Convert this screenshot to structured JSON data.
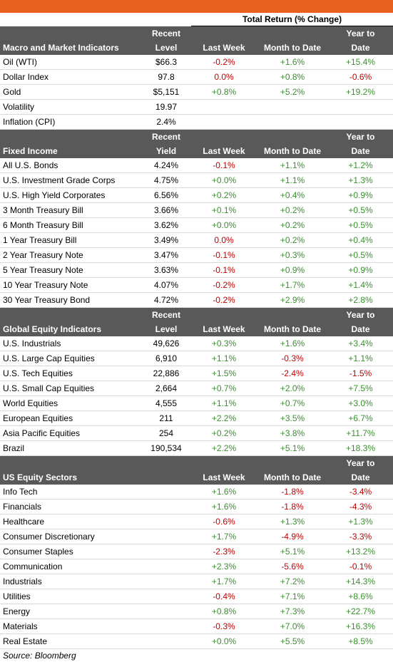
{
  "header": {
    "total_return_title": "Total Return (% Change)"
  },
  "sections": [
    {
      "title": "Macro and Market Indicators",
      "level_header": [
        "Recent",
        "Level"
      ],
      "cols": [
        "Last Week",
        "Month to Date",
        "Year to",
        "Date"
      ],
      "rows": [
        {
          "name": "Oil (WTI)",
          "level": "$66.3",
          "lw": "-0.2%",
          "mtd": "+1.6%",
          "ytd": "+15.4%"
        },
        {
          "name": "Dollar Index",
          "level": "97.8",
          "lw": "0.0%",
          "mtd": "+0.8%",
          "ytd": "-0.6%"
        },
        {
          "name": "Gold",
          "level": "$5,151",
          "lw": "+0.8%",
          "mtd": "+5.2%",
          "ytd": "+19.2%"
        },
        {
          "name": "Volatility",
          "level": "19.97",
          "lw": "",
          "mtd": "",
          "ytd": ""
        },
        {
          "name": "Inflation (CPI)",
          "level": "2.4%",
          "lw": "",
          "mtd": "",
          "ytd": ""
        }
      ]
    },
    {
      "title": "Fixed Income",
      "level_header": [
        "Recent",
        "Yield"
      ],
      "cols": [
        "Last Week",
        "Month to Date",
        "Year to",
        "Date"
      ],
      "rows": [
        {
          "name": "All U.S. Bonds",
          "level": "4.24%",
          "lw": "-0.1%",
          "mtd": "+1.1%",
          "ytd": "+1.2%"
        },
        {
          "name": "U.S. Investment Grade Corps",
          "level": "4.75%",
          "lw": "+0.0%",
          "mtd": "+1.1%",
          "ytd": "+1.3%"
        },
        {
          "name": "U.S. High Yield Corporates",
          "level": "6.56%",
          "lw": "+0.2%",
          "mtd": "+0.4%",
          "ytd": "+0.9%"
        },
        {
          "name": "3 Month Treasury Bill",
          "level": "3.66%",
          "lw": "+0.1%",
          "mtd": "+0.2%",
          "ytd": "+0.5%"
        },
        {
          "name": "6 Month Treasury Bill",
          "level": "3.62%",
          "lw": "+0.0%",
          "mtd": "+0.2%",
          "ytd": "+0.5%"
        },
        {
          "name": "1 Year Treasury Bill",
          "level": "3.49%",
          "lw": "0.0%",
          "mtd": "+0.2%",
          "ytd": "+0.4%"
        },
        {
          "name": "2 Year Treasury Note",
          "level": "3.47%",
          "lw": "-0.1%",
          "mtd": "+0.3%",
          "ytd": "+0.5%"
        },
        {
          "name": "5 Year Treasury Note",
          "level": "3.63%",
          "lw": "-0.1%",
          "mtd": "+0.9%",
          "ytd": "+0.9%"
        },
        {
          "name": "10 Year Treasury Note",
          "level": "4.07%",
          "lw": "-0.2%",
          "mtd": "+1.7%",
          "ytd": "+1.4%"
        },
        {
          "name": "30 Year Treasury Bond",
          "level": "4.72%",
          "lw": "-0.2%",
          "mtd": "+2.9%",
          "ytd": "+2.8%"
        }
      ]
    },
    {
      "title": "Global Equity Indicators",
      "level_header": [
        "Recent",
        "Level"
      ],
      "cols": [
        "Last Week",
        "Month to Date",
        "Year to",
        "Date"
      ],
      "rows": [
        {
          "name": "U.S. Industrials",
          "level": "49,626",
          "lw": "+0.3%",
          "mtd": "+1.6%",
          "ytd": "+3.4%"
        },
        {
          "name": "U.S. Large Cap Equities",
          "level": "6,910",
          "lw": "+1.1%",
          "mtd": "-0.3%",
          "ytd": "+1.1%"
        },
        {
          "name": "U.S. Tech Equities",
          "level": "22,886",
          "lw": "+1.5%",
          "mtd": "-2.4%",
          "ytd": "-1.5%"
        },
        {
          "name": "U.S. Small Cap Equities",
          "level": "2,664",
          "lw": "+0.7%",
          "mtd": "+2.0%",
          "ytd": "+7.5%"
        },
        {
          "name": "World Equities",
          "level": "4,555",
          "lw": "+1.1%",
          "mtd": "+0.7%",
          "ytd": "+3.0%"
        },
        {
          "name": "European Equities",
          "level": "211",
          "lw": "+2.2%",
          "mtd": "+3.5%",
          "ytd": "+6.7%"
        },
        {
          "name": "Asia Pacific Equities",
          "level": "254",
          "lw": "+0.2%",
          "mtd": "+3.8%",
          "ytd": "+11.7%"
        },
        {
          "name": "Brazil",
          "level": "190,534",
          "lw": "+2.2%",
          "mtd": "+5.1%",
          "ytd": "+18.3%"
        }
      ]
    },
    {
      "title": "US Equity Sectors",
      "level_header": [
        "",
        ""
      ],
      "cols": [
        "Last Week",
        "Month to Date",
        "Year to",
        "Date"
      ],
      "rows": [
        {
          "name": "Info Tech",
          "level": "",
          "lw": "+1.6%",
          "mtd": "-1.8%",
          "ytd": "-3.4%"
        },
        {
          "name": "Financials",
          "level": "",
          "lw": "+1.6%",
          "mtd": "-1.8%",
          "ytd": "-4.3%"
        },
        {
          "name": "Healthcare",
          "level": "",
          "lw": "-0.6%",
          "mtd": "+1.3%",
          "ytd": "+1.3%"
        },
        {
          "name": "Consumer Discretionary",
          "level": "",
          "lw": "+1.7%",
          "mtd": "-4.9%",
          "ytd": "-3.3%"
        },
        {
          "name": "Consumer Staples",
          "level": "",
          "lw": "-2.3%",
          "mtd": "+5.1%",
          "ytd": "+13.2%"
        },
        {
          "name": "Communication",
          "level": "",
          "lw": "+2.3%",
          "mtd": "-5.6%",
          "ytd": "-0.1%"
        },
        {
          "name": "Industrials",
          "level": "",
          "lw": "+1.7%",
          "mtd": "+7.2%",
          "ytd": "+14.3%"
        },
        {
          "name": "Utilities",
          "level": "",
          "lw": "-0.4%",
          "mtd": "+7.1%",
          "ytd": "+8.6%"
        },
        {
          "name": "Energy",
          "level": "",
          "lw": "+0.8%",
          "mtd": "+7.3%",
          "ytd": "+22.7%"
        },
        {
          "name": "Materials",
          "level": "",
          "lw": "-0.3%",
          "mtd": "+7.0%",
          "ytd": "+16.3%"
        },
        {
          "name": "Real Estate",
          "level": "",
          "lw": "+0.0%",
          "mtd": "+5.5%",
          "ytd": "+8.5%"
        }
      ]
    }
  ],
  "source": "Source: Bloomberg",
  "colors": {
    "accent": "#e8601c",
    "header_bg": "#595959",
    "positive": "#3a8f2f",
    "negative": "#c00000"
  }
}
